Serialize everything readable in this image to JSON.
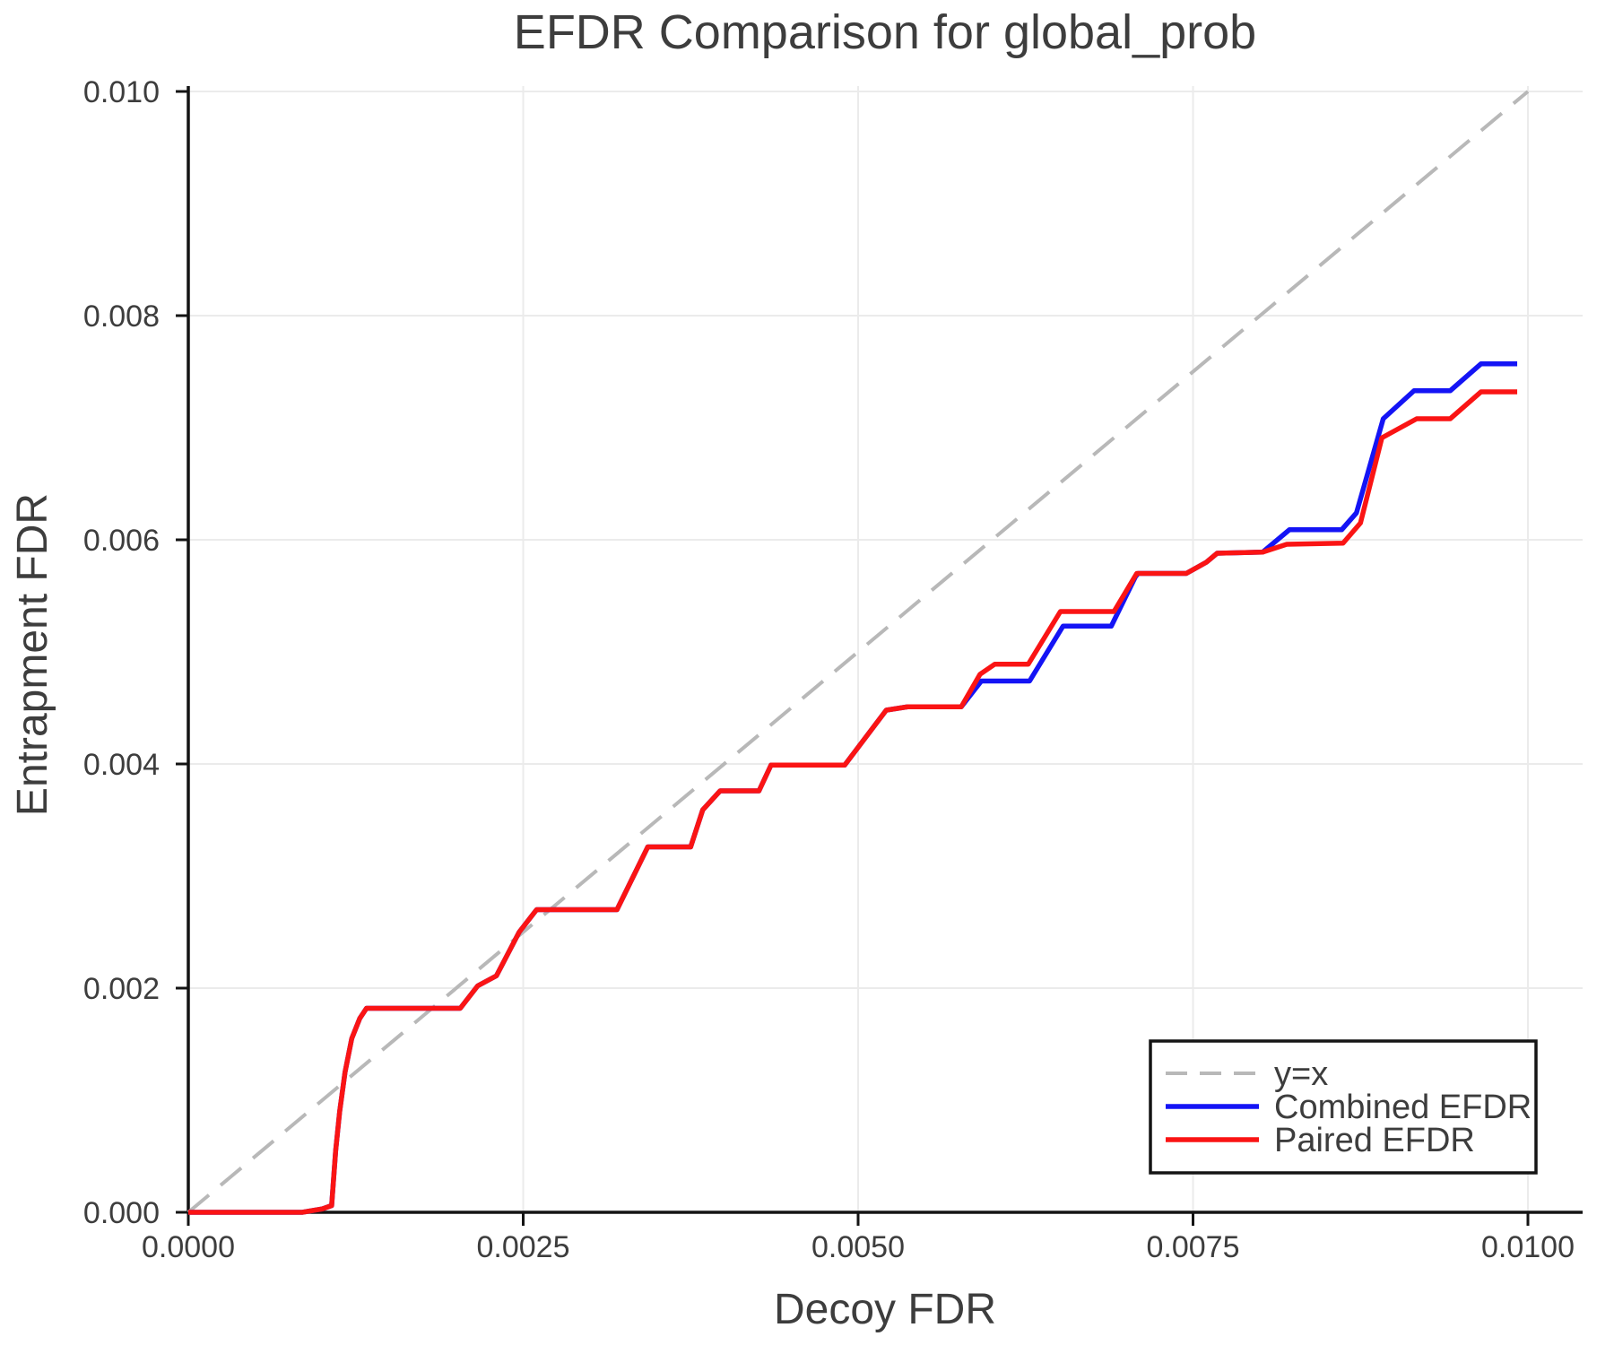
{
  "chart_data": {
    "type": "line",
    "title": "EFDR Comparison for global_prob",
    "xlabel": "Decoy FDR",
    "ylabel": "Entrapment FDR",
    "xlim": [
      0,
      0.0104
    ],
    "ylim": [
      0,
      0.01002
    ],
    "grid": true,
    "xticks": [
      0,
      0.0025,
      0.005,
      0.0075,
      0.01
    ],
    "xtick_labels": [
      "0.0000",
      "0.0025",
      "0.0050",
      "0.0075",
      "0.0100"
    ],
    "yticks": [
      0,
      0.002,
      0.004,
      0.006,
      0.008,
      0.01
    ],
    "ytick_labels": [
      "0.000",
      "0.002",
      "0.004",
      "0.006",
      "0.008",
      "0.010"
    ],
    "identity_line": {
      "label": "y=x",
      "color": "#b8b8b8",
      "dashed": true,
      "from": [
        0,
        0
      ],
      "to": [
        0.01,
        0.01
      ]
    },
    "series": [
      {
        "name": "Combined EFDR",
        "color": "#1414f5",
        "points": [
          [
            0.0,
            0.0
          ],
          [
            0.00085,
            0.0
          ],
          [
            0.001,
            3e-05
          ],
          [
            0.00107,
            6e-05
          ],
          [
            0.0011,
            0.00055
          ],
          [
            0.00113,
            0.0009
          ],
          [
            0.00117,
            0.00125
          ],
          [
            0.00122,
            0.00155
          ],
          [
            0.00128,
            0.00173
          ],
          [
            0.00133,
            0.00182
          ],
          [
            0.00203,
            0.00182
          ],
          [
            0.00216,
            0.00202
          ],
          [
            0.0023,
            0.00211
          ],
          [
            0.00247,
            0.0025
          ],
          [
            0.0026,
            0.0027
          ],
          [
            0.0032,
            0.0027
          ],
          [
            0.00343,
            0.00326
          ],
          [
            0.00375,
            0.00326
          ],
          [
            0.00384,
            0.00359
          ],
          [
            0.00397,
            0.00376
          ],
          [
            0.00426,
            0.00376
          ],
          [
            0.00435,
            0.00399
          ],
          [
            0.0049,
            0.00399
          ],
          [
            0.00521,
            0.00448
          ],
          [
            0.00537,
            0.00451
          ],
          [
            0.00577,
            0.00451
          ],
          [
            0.00592,
            0.00474
          ],
          [
            0.00628,
            0.00474
          ],
          [
            0.00653,
            0.00523
          ],
          [
            0.00689,
            0.00523
          ],
          [
            0.00707,
            0.00567
          ],
          [
            0.00709,
            0.0057
          ],
          [
            0.00745,
            0.0057
          ],
          [
            0.0076,
            0.0058
          ],
          [
            0.00768,
            0.00588
          ],
          [
            0.00802,
            0.00589
          ],
          [
            0.00822,
            0.00609
          ],
          [
            0.00861,
            0.00609
          ],
          [
            0.00872,
            0.00624
          ],
          [
            0.00892,
            0.00708
          ],
          [
            0.00915,
            0.00733
          ],
          [
            0.00942,
            0.00733
          ],
          [
            0.00965,
            0.00757
          ],
          [
            0.00992,
            0.00757
          ]
        ]
      },
      {
        "name": "Paired EFDR",
        "color": "#fa1414",
        "points": [
          [
            0.0,
            0.0
          ],
          [
            0.00085,
            0.0
          ],
          [
            0.001,
            3e-05
          ],
          [
            0.00107,
            6e-05
          ],
          [
            0.0011,
            0.00055
          ],
          [
            0.00113,
            0.0009
          ],
          [
            0.00117,
            0.00125
          ],
          [
            0.00122,
            0.00155
          ],
          [
            0.00128,
            0.00173
          ],
          [
            0.00133,
            0.00182
          ],
          [
            0.00203,
            0.00182
          ],
          [
            0.00216,
            0.00202
          ],
          [
            0.0023,
            0.00211
          ],
          [
            0.00247,
            0.0025
          ],
          [
            0.0026,
            0.0027
          ],
          [
            0.0032,
            0.0027
          ],
          [
            0.00343,
            0.00326
          ],
          [
            0.00375,
            0.00326
          ],
          [
            0.00384,
            0.00359
          ],
          [
            0.00397,
            0.00376
          ],
          [
            0.00426,
            0.00376
          ],
          [
            0.00435,
            0.00399
          ],
          [
            0.0049,
            0.00399
          ],
          [
            0.00521,
            0.00448
          ],
          [
            0.00537,
            0.00451
          ],
          [
            0.00577,
            0.00451
          ],
          [
            0.00591,
            0.0048
          ],
          [
            0.00602,
            0.00489
          ],
          [
            0.00627,
            0.00489
          ],
          [
            0.00651,
            0.00536
          ],
          [
            0.00691,
            0.00536
          ],
          [
            0.00708,
            0.0057
          ],
          [
            0.00745,
            0.0057
          ],
          [
            0.0076,
            0.0058
          ],
          [
            0.00768,
            0.00588
          ],
          [
            0.00802,
            0.00589
          ],
          [
            0.0082,
            0.00596
          ],
          [
            0.00862,
            0.00597
          ],
          [
            0.00875,
            0.00615
          ],
          [
            0.00891,
            0.00691
          ],
          [
            0.00917,
            0.00708
          ],
          [
            0.00942,
            0.00708
          ],
          [
            0.00965,
            0.00732
          ],
          [
            0.00992,
            0.00732
          ]
        ]
      }
    ],
    "legend": {
      "position": "bottom-right",
      "entries": [
        {
          "label": "y=x",
          "color": "#b8b8b8",
          "dashed": true
        },
        {
          "label": "Combined EFDR",
          "color": "#1414f5",
          "dashed": false
        },
        {
          "label": "Paired EFDR",
          "color": "#fa1414",
          "dashed": false
        }
      ]
    },
    "style": {
      "grid_color": "#ebebeb",
      "spine_color": "#141414",
      "text_color": "#3d3d3d",
      "background": "#ffffff"
    }
  }
}
